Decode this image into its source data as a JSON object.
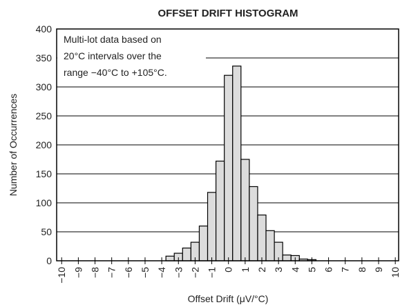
{
  "chart_data": {
    "type": "histogram",
    "title": "OFFSET DRIFT HISTOGRAM",
    "x_label": "Offset Drift (μV/°C)",
    "y_label": "Number of Occurrences",
    "annotation": [
      "Multi-lot data based on",
      "20°C intervals over the",
      "range −40°C to +105°C."
    ],
    "bins": [
      -3.75,
      -3.25,
      -2.75,
      -2.25,
      -1.75,
      -1.25,
      -0.75,
      -0.25,
      0.25,
      0.75,
      1.25,
      1.75,
      2.25,
      2.75,
      3.25,
      3.75,
      4.25,
      4.75,
      5.25
    ],
    "values": [
      8,
      13,
      22,
      32,
      60,
      118,
      172,
      320,
      336,
      175,
      128,
      79,
      52,
      32,
      10,
      9,
      3,
      2
    ],
    "color": "#dcdcdc",
    "xlim": [
      -10.3,
      10.2
    ],
    "ylim": [
      0,
      400
    ],
    "xticks": [
      {
        "value": -10,
        "label": "−10"
      },
      {
        "value": -9,
        "label": "−9"
      },
      {
        "value": -8,
        "label": "−8"
      },
      {
        "value": -7,
        "label": "−7"
      },
      {
        "value": -6,
        "label": "−6"
      },
      {
        "value": -5,
        "label": "−5"
      },
      {
        "value": -4,
        "label": "−4"
      },
      {
        "value": -3,
        "label": "−3"
      },
      {
        "value": -2,
        "label": "−2"
      },
      {
        "value": -1,
        "label": "−1"
      },
      0,
      1,
      2,
      3,
      4,
      5,
      6,
      7,
      8,
      9,
      10
    ],
    "yticks": [
      0,
      50,
      100,
      150,
      200,
      250,
      300,
      350,
      400
    ],
    "grid": true
  }
}
